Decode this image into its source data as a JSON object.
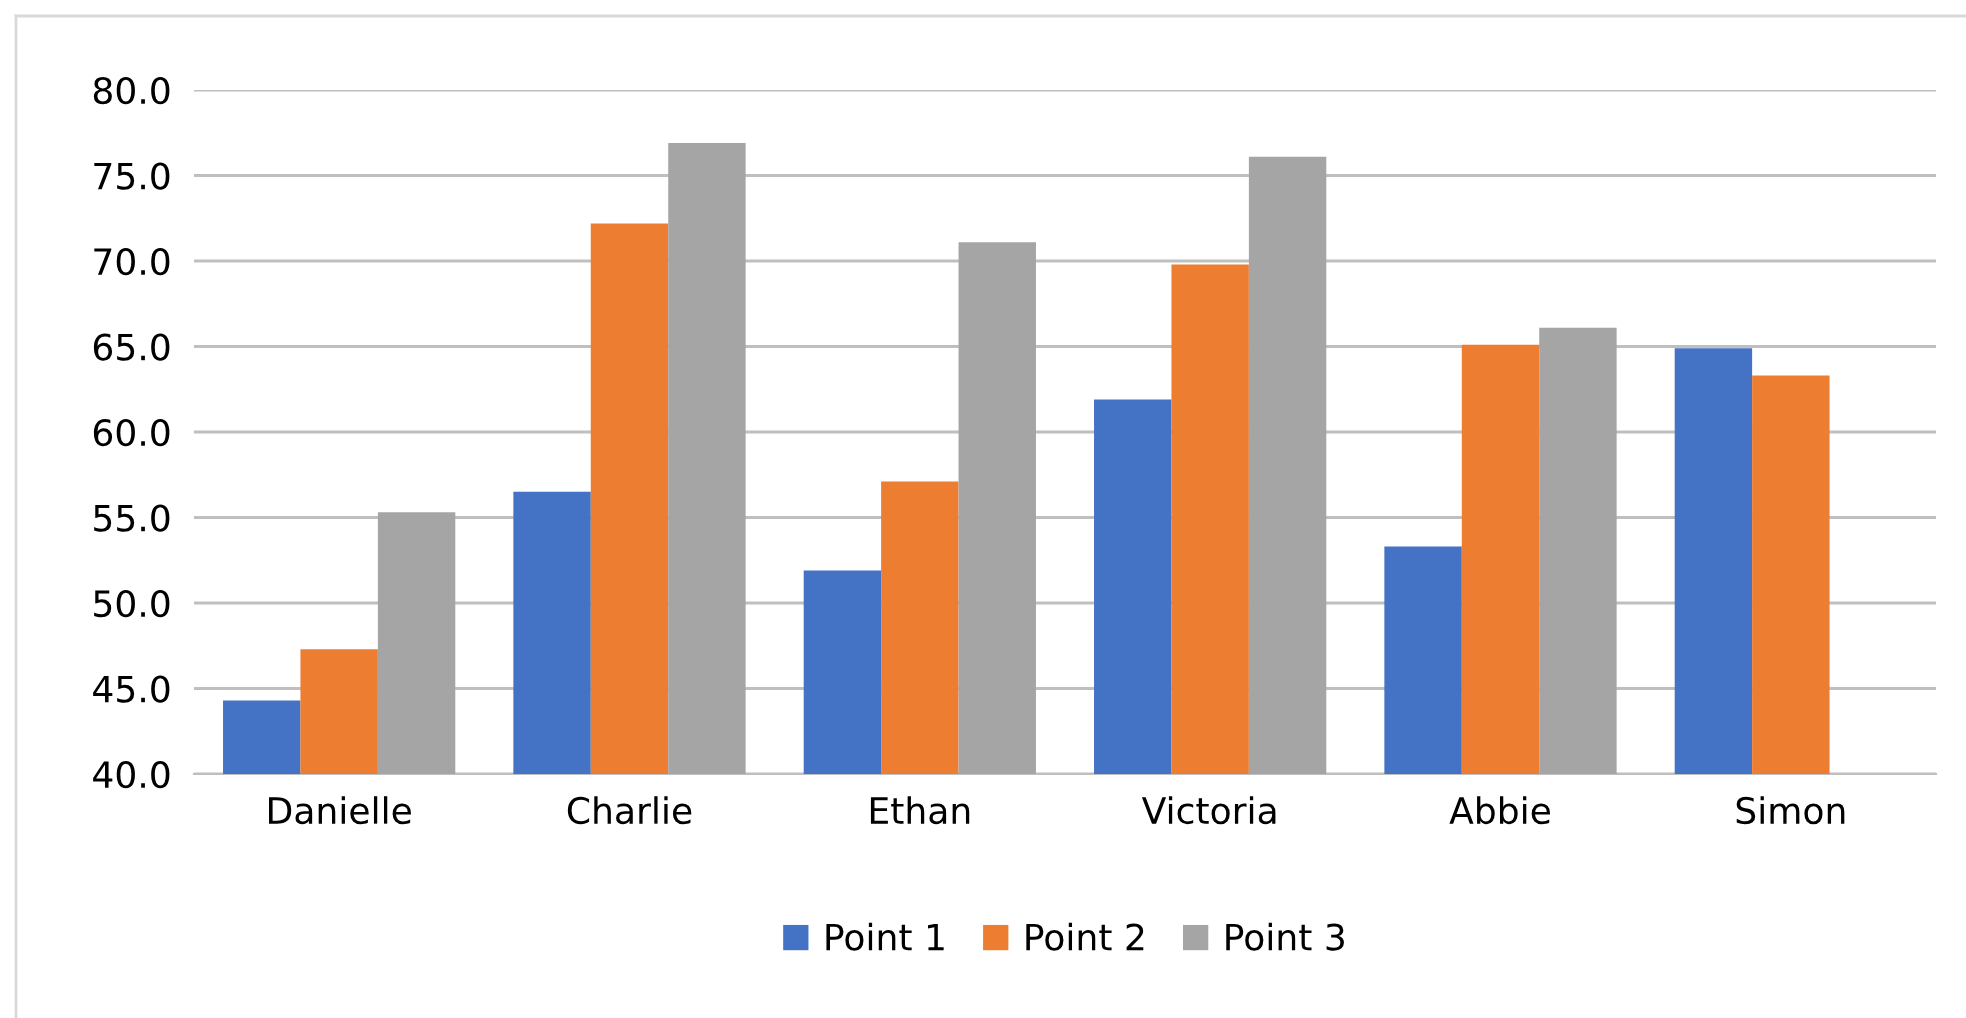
{
  "chart_data": {
    "type": "bar",
    "categories": [
      "Danielle",
      "Charlie",
      "Ethan",
      "Victoria",
      "Abbie",
      "Simon"
    ],
    "series": [
      {
        "name": "Point 1",
        "color": "#4472c4",
        "values": [
          44.3,
          56.5,
          51.9,
          61.9,
          53.3,
          64.9
        ]
      },
      {
        "name": "Point 2",
        "color": "#ed7d31",
        "values": [
          47.3,
          72.2,
          57.1,
          69.8,
          65.1,
          63.3
        ]
      },
      {
        "name": "Point 3",
        "color": "#a5a5a5",
        "values": [
          55.3,
          76.9,
          71.1,
          76.1,
          66.1,
          null
        ]
      }
    ],
    "ylim": [
      40,
      80
    ],
    "yticks": [
      {
        "value": 40,
        "label": "40.0"
      },
      {
        "value": 45,
        "label": "45.0"
      },
      {
        "value": 50,
        "label": "50.0"
      },
      {
        "value": 55,
        "label": "55.0"
      },
      {
        "value": 60,
        "label": "60.0"
      },
      {
        "value": 65,
        "label": "65.0"
      },
      {
        "value": 70,
        "label": "70.0"
      },
      {
        "value": 75,
        "label": "75.0"
      },
      {
        "value": 80,
        "label": "80.0"
      }
    ],
    "grid": "y",
    "legend": "bottom"
  }
}
